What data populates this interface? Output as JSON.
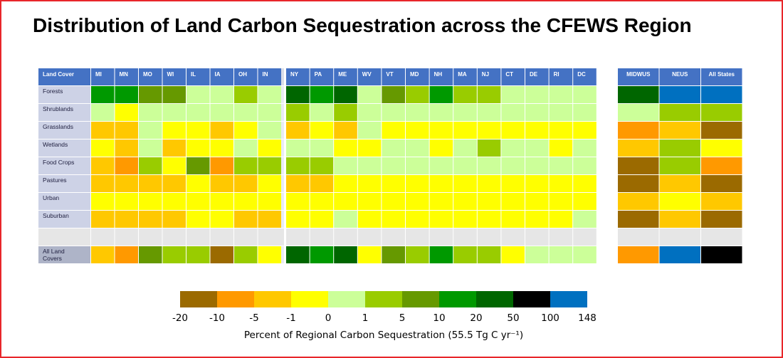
{
  "chart_data": {
    "type": "heatmap",
    "title": "Distribution of  Land Carbon Sequestration across the CFEWS Region",
    "corner_label": "Land Cover",
    "groups": [
      {
        "name": "",
        "columns": [
          "MI",
          "MN",
          "MO",
          "WI",
          "IL",
          "IA",
          "OH",
          "IN"
        ]
      },
      {
        "name": "",
        "columns": [
          "NY",
          "PA",
          "ME",
          "WV",
          "VT",
          "MD",
          "NH",
          "MA",
          "NJ",
          "CT",
          "DE",
          "RI",
          "DC"
        ]
      },
      {
        "name": "",
        "columns": [
          "MIDWUS",
          "NEUS",
          "All States"
        ]
      }
    ],
    "rows": [
      "Forests",
      "Shrublands",
      "Grasslands",
      "Wetlands",
      "Food Crops",
      "Pastures",
      "Urban",
      "Suburban",
      "",
      "All Land Covers"
    ],
    "bins": [
      {
        "label": "-20 to -10",
        "color": "#9b6a00"
      },
      {
        "label": "-10 to -5",
        "color": "#ff9900"
      },
      {
        "label": "-5 to -1",
        "color": "#ffc800"
      },
      {
        "label": "-1 to 0",
        "color": "#ffff00"
      },
      {
        "label": "0 to 1",
        "color": "#ccff99"
      },
      {
        "label": "1 to 5",
        "color": "#99cc00"
      },
      {
        "label": "5 to 10",
        "color": "#669900"
      },
      {
        "label": "10 to 20",
        "color": "#009900"
      },
      {
        "label": "20 to 50",
        "color": "#006600"
      },
      {
        "label": "50 to 100",
        "color": "#000000"
      },
      {
        "label": "100 to 148",
        "color": "#0070c0"
      }
    ],
    "cells": {
      "Forests": [
        [
          7,
          7,
          6,
          6,
          4,
          4,
          5,
          4
        ],
        [
          8,
          7,
          8,
          4,
          6,
          5,
          7,
          5,
          5,
          4,
          4,
          4,
          4
        ],
        [
          8,
          10,
          10
        ]
      ],
      "Shrublands": [
        [
          4,
          3,
          4,
          4,
          4,
          4,
          4,
          4
        ],
        [
          5,
          4,
          5,
          4,
          4,
          4,
          4,
          4,
          4,
          4,
          4,
          4,
          4
        ],
        [
          4,
          5,
          5
        ]
      ],
      "Grasslands": [
        [
          2,
          2,
          4,
          3,
          3,
          2,
          3,
          4
        ],
        [
          2,
          3,
          2,
          4,
          3,
          3,
          3,
          3,
          3,
          3,
          3,
          3,
          3
        ],
        [
          1,
          2,
          0
        ]
      ],
      "Wetlands": [
        [
          3,
          2,
          4,
          2,
          3,
          3,
          4,
          3
        ],
        [
          4,
          4,
          3,
          3,
          4,
          4,
          3,
          4,
          5,
          4,
          4,
          3,
          4
        ],
        [
          2,
          5,
          3
        ]
      ],
      "Food Crops": [
        [
          2,
          1,
          5,
          3,
          6,
          1,
          5,
          5
        ],
        [
          5,
          5,
          4,
          4,
          4,
          4,
          4,
          4,
          4,
          4,
          4,
          4,
          4
        ],
        [
          0,
          5,
          1
        ]
      ],
      "Pastures": [
        [
          2,
          2,
          2,
          2,
          3,
          2,
          2,
          3
        ],
        [
          2,
          2,
          3,
          3,
          3,
          3,
          3,
          3,
          3,
          3,
          3,
          3,
          3
        ],
        [
          0,
          2,
          0
        ]
      ],
      "Urban": [
        [
          3,
          3,
          3,
          3,
          3,
          3,
          3,
          3
        ],
        [
          3,
          3,
          3,
          3,
          3,
          3,
          3,
          3,
          3,
          3,
          3,
          3,
          3
        ],
        [
          2,
          3,
          2
        ]
      ],
      "Suburban": [
        [
          2,
          2,
          2,
          2,
          3,
          3,
          2,
          2
        ],
        [
          3,
          3,
          4,
          3,
          3,
          3,
          3,
          3,
          3,
          3,
          3,
          3,
          4
        ],
        [
          0,
          2,
          0
        ]
      ],
      "All Land Covers": [
        [
          2,
          1,
          6,
          5,
          5,
          0,
          5,
          3
        ],
        [
          8,
          7,
          8,
          3,
          6,
          5,
          7,
          5,
          5,
          3,
          4,
          4,
          4
        ],
        [
          1,
          10,
          9
        ]
      ]
    },
    "legend": {
      "ticks": [
        "-20",
        "-10",
        "-5",
        "-1",
        "0",
        "1",
        "5",
        "10",
        "20",
        "50",
        "100",
        "148"
      ],
      "xlabel": "Percent of Regional Carbon Sequestration (55.5 Tg C yr⁻¹)"
    }
  }
}
